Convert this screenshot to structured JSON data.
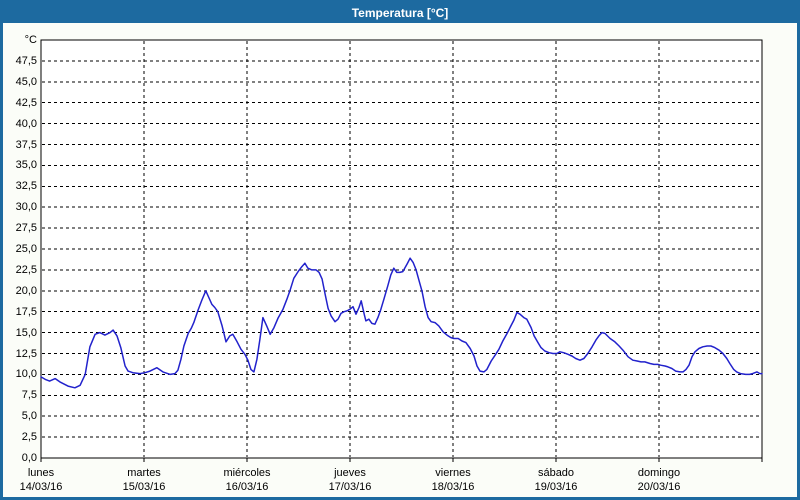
{
  "window": {
    "title": "Temperatura [°C]"
  },
  "colors": {
    "titlebar_bg": "#1D6AA0",
    "window_border": "#1D6AA0",
    "background": "#FBFDF8",
    "plot_bg": "#FFFFFF",
    "line": "#2222CC",
    "grid": "#000000",
    "text": "#000000"
  },
  "chart_data": {
    "type": "line",
    "title": "Temperatura [°C]",
    "ylabel": "°C",
    "ylim": [
      0,
      50
    ],
    "ytick_step": 2.5,
    "ytick_labels": [
      "0,0",
      "2,5",
      "5,0",
      "7,5",
      "10,0",
      "12,5",
      "15,0",
      "17,5",
      "20,0",
      "22,5",
      "25,0",
      "27,5",
      "30,0",
      "32,5",
      "35,0",
      "37,5",
      "40,0",
      "42,5",
      "45,0",
      "47,5"
    ],
    "xlim_hours": [
      0,
      168
    ],
    "hours_per_day": 24,
    "grid": "dashed",
    "x_days": [
      {
        "name": "lunes",
        "date": "14/03/16"
      },
      {
        "name": "martes",
        "date": "15/03/16"
      },
      {
        "name": "miércoles",
        "date": "16/03/16"
      },
      {
        "name": "jueves",
        "date": "17/03/16"
      },
      {
        "name": "viernes",
        "date": "18/03/16"
      },
      {
        "name": "sábado",
        "date": "19/03/16"
      },
      {
        "name": "domingo",
        "date": "20/03/16"
      }
    ],
    "series": [
      {
        "points": [
          [
            0,
            9.7
          ],
          [
            1,
            9.4
          ],
          [
            2,
            9.2
          ],
          [
            3.3,
            9.5
          ],
          [
            4.4,
            9.1
          ],
          [
            6.3,
            8.6
          ],
          [
            7.9,
            8.4
          ],
          [
            9.1,
            8.7
          ],
          [
            10.3,
            10.0
          ],
          [
            11.4,
            13.3
          ],
          [
            12.6,
            14.8
          ],
          [
            13.7,
            15.0
          ],
          [
            14.9,
            14.7
          ],
          [
            16.1,
            15.0
          ],
          [
            16.8,
            15.3
          ],
          [
            17.7,
            14.6
          ],
          [
            18.6,
            13.2
          ],
          [
            19.6,
            11.0
          ],
          [
            20.3,
            10.4
          ],
          [
            21.4,
            10.2
          ],
          [
            23.1,
            10.1
          ],
          [
            24.2,
            10.2
          ],
          [
            25.4,
            10.4
          ],
          [
            27,
            10.8
          ],
          [
            28.4,
            10.3
          ],
          [
            30.1,
            10.0
          ],
          [
            31.2,
            10.1
          ],
          [
            31.9,
            10.5
          ],
          [
            32.6,
            11.8
          ],
          [
            33.3,
            13.4
          ],
          [
            34.3,
            14.9
          ],
          [
            35,
            15.5
          ],
          [
            35.6,
            16.2
          ],
          [
            36.6,
            17.7
          ],
          [
            37.5,
            18.9
          ],
          [
            38.4,
            20.0
          ],
          [
            39.1,
            19.2
          ],
          [
            39.8,
            18.4
          ],
          [
            40.5,
            18.0
          ],
          [
            41.2,
            17.5
          ],
          [
            42.2,
            15.8
          ],
          [
            43.1,
            13.9
          ],
          [
            44,
            14.6
          ],
          [
            44.7,
            14.8
          ],
          [
            45.7,
            13.9
          ],
          [
            46.6,
            13.0
          ],
          [
            47.5,
            12.4
          ],
          [
            48.2,
            11.7
          ],
          [
            48.9,
            10.6
          ],
          [
            49.6,
            10.3
          ],
          [
            50.3,
            11.8
          ],
          [
            51,
            14.2
          ],
          [
            51.7,
            16.8
          ],
          [
            52.6,
            15.8
          ],
          [
            53.4,
            14.8
          ],
          [
            54.3,
            15.6
          ],
          [
            55.2,
            16.7
          ],
          [
            56.4,
            17.8
          ],
          [
            57.3,
            19.0
          ],
          [
            58,
            20.0
          ],
          [
            58.9,
            21.5
          ],
          [
            59.9,
            22.3
          ],
          [
            60.8,
            22.9
          ],
          [
            61.5,
            23.3
          ],
          [
            62.2,
            22.7
          ],
          [
            63.1,
            22.5
          ],
          [
            64.1,
            22.5
          ],
          [
            64.8,
            22.2
          ],
          [
            65.5,
            21.4
          ],
          [
            66.2,
            19.6
          ],
          [
            66.9,
            17.9
          ],
          [
            67.6,
            17.0
          ],
          [
            68.5,
            16.3
          ],
          [
            69.2,
            16.6
          ],
          [
            69.9,
            17.3
          ],
          [
            70.6,
            17.5
          ],
          [
            71.3,
            17.6
          ],
          [
            72,
            17.8
          ],
          [
            72.7,
            18.1
          ],
          [
            73.4,
            17.2
          ],
          [
            74.1,
            18.0
          ],
          [
            74.6,
            18.8
          ],
          [
            75.3,
            17.2
          ],
          [
            75.7,
            16.4
          ],
          [
            76.4,
            16.6
          ],
          [
            77.1,
            16.1
          ],
          [
            77.8,
            16.0
          ],
          [
            78.5,
            16.8
          ],
          [
            79.2,
            17.8
          ],
          [
            79.9,
            19.0
          ],
          [
            80.8,
            20.6
          ],
          [
            81.5,
            21.9
          ],
          [
            82.2,
            22.7
          ],
          [
            82.9,
            22.2
          ],
          [
            83.6,
            22.2
          ],
          [
            84.3,
            22.3
          ],
          [
            85.3,
            23.2
          ],
          [
            86,
            23.9
          ],
          [
            86.7,
            23.4
          ],
          [
            87.4,
            22.5
          ],
          [
            88.1,
            21.2
          ],
          [
            88.8,
            19.9
          ],
          [
            89.5,
            18.1
          ],
          [
            90.2,
            16.8
          ],
          [
            90.9,
            16.3
          ],
          [
            91.8,
            16.2
          ],
          [
            92.7,
            15.8
          ],
          [
            93.7,
            15.1
          ],
          [
            94.6,
            14.7
          ],
          [
            95.5,
            14.4
          ],
          [
            96.2,
            14.3
          ],
          [
            97.2,
            14.3
          ],
          [
            98.1,
            14.0
          ],
          [
            99,
            13.8
          ],
          [
            100,
            13.1
          ],
          [
            100.9,
            12.2
          ],
          [
            101.6,
            11.0
          ],
          [
            102.3,
            10.4
          ],
          [
            103.2,
            10.3
          ],
          [
            103.9,
            10.6
          ],
          [
            104.9,
            11.6
          ],
          [
            105.8,
            12.3
          ],
          [
            106.7,
            13.0
          ],
          [
            107.6,
            14.0
          ],
          [
            108.6,
            14.9
          ],
          [
            109.5,
            15.8
          ],
          [
            110.2,
            16.5
          ],
          [
            110.9,
            17.4
          ],
          [
            111.6,
            17.2
          ],
          [
            112.5,
            16.8
          ],
          [
            113.2,
            16.6
          ],
          [
            114.2,
            15.6
          ],
          [
            114.9,
            14.6
          ],
          [
            115.8,
            13.8
          ],
          [
            116.5,
            13.2
          ],
          [
            117.4,
            12.8
          ],
          [
            118.4,
            12.6
          ],
          [
            119.3,
            12.5
          ],
          [
            120.2,
            12.5
          ],
          [
            120.9,
            12.7
          ],
          [
            121.8,
            12.6
          ],
          [
            122.8,
            12.4
          ],
          [
            123.7,
            12.2
          ],
          [
            124.6,
            11.9
          ],
          [
            125.6,
            11.7
          ],
          [
            126.5,
            11.9
          ],
          [
            127.4,
            12.5
          ],
          [
            128.4,
            13.3
          ],
          [
            129.3,
            14.1
          ],
          [
            130,
            14.6
          ],
          [
            130.7,
            15.0
          ],
          [
            131.4,
            14.9
          ],
          [
            132.6,
            14.3
          ],
          [
            133.7,
            13.9
          ],
          [
            134.7,
            13.4
          ],
          [
            135.6,
            12.9
          ],
          [
            136.8,
            12.1
          ],
          [
            137.9,
            11.7
          ],
          [
            138.9,
            11.6
          ],
          [
            139.8,
            11.5
          ],
          [
            140.7,
            11.5
          ],
          [
            141.9,
            11.3
          ],
          [
            142.8,
            11.2
          ],
          [
            143.7,
            11.2
          ],
          [
            144.4,
            11.1
          ],
          [
            145.4,
            11.0
          ],
          [
            146.1,
            10.9
          ],
          [
            147,
            10.7
          ],
          [
            147.9,
            10.4
          ],
          [
            148.9,
            10.3
          ],
          [
            149.6,
            10.3
          ],
          [
            150.3,
            10.6
          ],
          [
            151,
            11.1
          ],
          [
            151.7,
            12.1
          ],
          [
            152.4,
            12.7
          ],
          [
            153.3,
            13.1
          ],
          [
            154.2,
            13.3
          ],
          [
            155.2,
            13.4
          ],
          [
            156.1,
            13.4
          ],
          [
            157,
            13.2
          ],
          [
            158,
            12.9
          ],
          [
            158.9,
            12.5
          ],
          [
            159.8,
            11.9
          ],
          [
            160.5,
            11.3
          ],
          [
            161.4,
            10.6
          ],
          [
            162.1,
            10.3
          ],
          [
            163,
            10.1
          ],
          [
            164.2,
            10.0
          ],
          [
            165.1,
            10.0
          ],
          [
            165.8,
            10.1
          ],
          [
            166.8,
            10.3
          ],
          [
            167.5,
            10.1
          ],
          [
            168,
            10.1
          ]
        ]
      }
    ]
  }
}
